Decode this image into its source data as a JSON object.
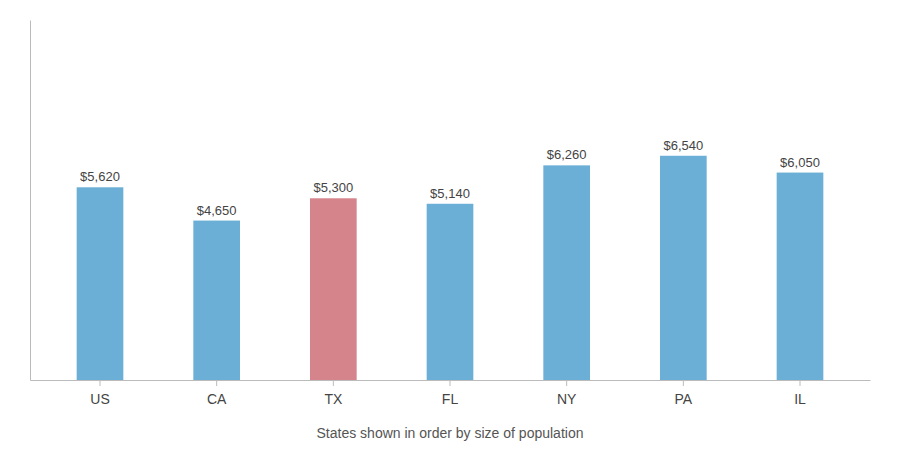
{
  "chart_data": {
    "type": "bar",
    "categories": [
      "US",
      "CA",
      "TX",
      "FL",
      "NY",
      "PA",
      "IL"
    ],
    "values": [
      5620,
      4650,
      5300,
      5140,
      6260,
      6540,
      6050
    ],
    "value_labels": [
      "$5,620",
      "$4,650",
      "$5,300",
      "$5,140",
      "$6,260",
      "$6,540",
      "$6,050"
    ],
    "data_labels": true,
    "colors": [
      "#6BAED6",
      "#6BAED6",
      "#D4848A",
      "#6BAED6",
      "#6BAED6",
      "#6BAED6",
      "#6BAED6"
    ],
    "ylim": [
      0,
      10500
    ],
    "tick_labels": "x",
    "grid": false,
    "annotations": [
      "States shown in order by size of population"
    ]
  }
}
